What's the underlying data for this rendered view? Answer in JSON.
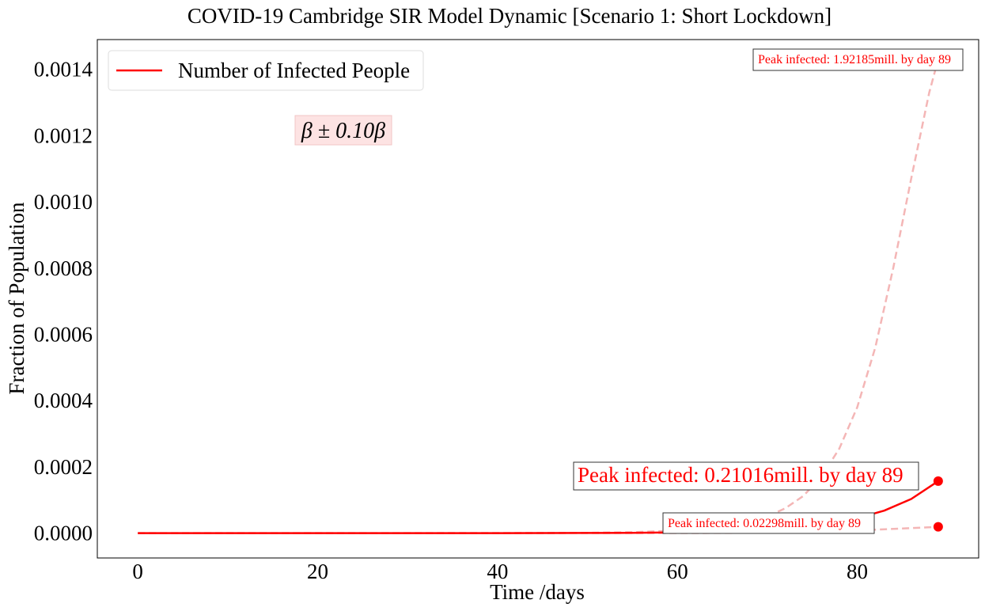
{
  "chart_data": {
    "type": "line",
    "title": "COVID-19 Cambridge SIR Model Dynamic [Scenario 1: Short Lockdown]",
    "xlabel": "Time /days",
    "ylabel": "Fraction of Population",
    "xlim": [
      -4.5,
      93.5
    ],
    "ylim": [
      -7.5e-05,
      0.00149
    ],
    "x_ticks": [
      0,
      20,
      40,
      60,
      80
    ],
    "x_tick_labels": [
      "0",
      "20",
      "40",
      "60",
      "80"
    ],
    "y_ticks": [
      0,
      0.0002,
      0.0004,
      0.0006,
      0.0008,
      0.001,
      0.0012,
      0.0014
    ],
    "y_tick_labels": [
      "0.0000",
      "0.0002",
      "0.0004",
      "0.0006",
      "0.0008",
      "0.0010",
      "0.0012",
      "0.0014"
    ],
    "grid": false,
    "legend": {
      "position": "top-left",
      "entries": [
        {
          "label": "Number of Infected People",
          "color": "#ff0000"
        }
      ]
    },
    "annotation_box": {
      "text": "β ± 0.10β"
    },
    "series": [
      {
        "name": "Number of Infected People",
        "style": "solid",
        "color": "#ff0000",
        "x": [
          0,
          10,
          20,
          30,
          40,
          50,
          55,
          60,
          65,
          70,
          75,
          80,
          83,
          86,
          89
        ],
        "y": [
          0,
          0,
          0,
          0,
          1e-07,
          5e-07,
          1e-06,
          2.5e-06,
          5.5e-06,
          1.1e-05,
          2.2e-05,
          4.5e-05,
          6.8e-05,
          0.000103,
          0.000157
        ]
      },
      {
        "style": "dashed",
        "color": "#f4b6b6",
        "x": [
          0,
          10,
          20,
          30,
          40,
          50,
          55,
          60,
          65,
          70,
          72,
          74,
          76,
          78,
          80,
          82,
          84,
          86,
          88,
          89
        ],
        "y": [
          0,
          0,
          0,
          0,
          2e-07,
          1e-06,
          3e-06,
          8e-06,
          2e-05,
          5e-05,
          7.5e-05,
          0.000112,
          0.00017,
          0.000255,
          0.00038,
          0.00056,
          0.0008,
          0.00107,
          0.00133,
          0.00143
        ]
      },
      {
        "style": "dashed",
        "color": "#f4b6b6",
        "x": [
          0,
          20,
          40,
          60,
          65,
          70,
          75,
          80,
          85,
          89
        ],
        "y": [
          0,
          0,
          0,
          2e-07,
          6e-07,
          1.5e-06,
          4e-06,
          8e-06,
          1.4e-05,
          1.9e-05
        ]
      }
    ],
    "peaks": [
      {
        "x": 89,
        "y": 0.000157,
        "color": "#ff0000",
        "label": "Peak infected: 0.21016mill. by day 89"
      },
      {
        "x": 89,
        "y": 0.00143,
        "color": "#f4b6b6",
        "label": "Peak infected: 1.92185mill. by day 89"
      },
      {
        "x": 89,
        "y": 1.9e-05,
        "color": "#ff0000",
        "label": "Peak infected: 0.02298mill. by day 89"
      }
    ]
  }
}
